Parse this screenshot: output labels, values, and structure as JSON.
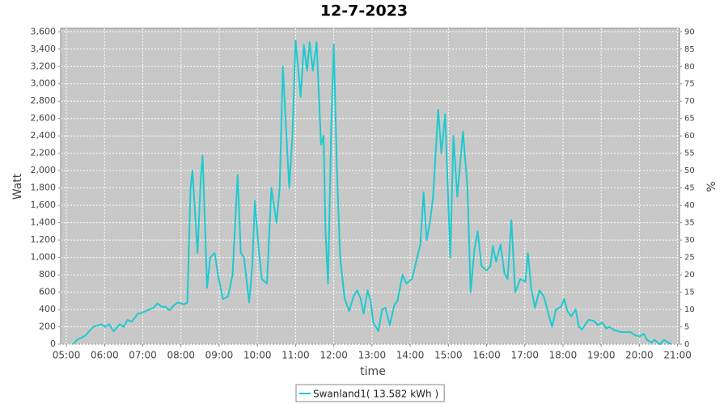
{
  "chart_data": {
    "type": "line",
    "title": "12-7-2023",
    "x_label": "time",
    "y_label": "Watt",
    "y2_label": "%",
    "xlim": [
      "04:51",
      "21:03"
    ],
    "xticks": [
      "05:00",
      "06:00",
      "07:00",
      "08:00",
      "09:00",
      "10:00",
      "11:00",
      "12:00",
      "13:00",
      "14:00",
      "15:00",
      "16:00",
      "17:00",
      "18:00",
      "19:00",
      "20:00",
      "21:00"
    ],
    "ylim": [
      0,
      3640
    ],
    "yticks": [
      0,
      200,
      400,
      600,
      800,
      {
        "value": 1000,
        "label": "1,000"
      },
      {
        "value": 1200,
        "label": "1,200"
      },
      {
        "value": 1400,
        "label": "1,400"
      },
      {
        "value": 1600,
        "label": "1,600"
      },
      {
        "value": 1800,
        "label": "1,800"
      },
      {
        "value": 2000,
        "label": "2,000"
      },
      {
        "value": 2200,
        "label": "2,200"
      },
      {
        "value": 2400,
        "label": "2,400"
      },
      {
        "value": 2600,
        "label": "2,600"
      },
      {
        "value": 2800,
        "label": "2,800"
      },
      {
        "value": 3000,
        "label": "3,000"
      },
      {
        "value": 3200,
        "label": "3,200"
      },
      {
        "value": 3400,
        "label": "3,400"
      },
      {
        "value": 3600,
        "label": "3,600"
      }
    ],
    "y2lim": [
      0,
      91
    ],
    "y2ticks": [
      0,
      5,
      10,
      15,
      20,
      25,
      30,
      35,
      40,
      45,
      50,
      55,
      60,
      65,
      70,
      75,
      80,
      85,
      90
    ],
    "grid": true,
    "background": "#c8c8c8",
    "legend": "bottom",
    "x": [
      "05:10",
      "05:17",
      "05:30",
      "05:36",
      "05:42",
      "05:55",
      "06:01",
      "06:07",
      "06:14",
      "06:24",
      "06:30",
      "06:36",
      "06:43",
      "06:52",
      "06:58",
      "07:04",
      "07:17",
      "07:23",
      "07:30",
      "07:36",
      "07:42",
      "07:49",
      "07:55",
      "08:05",
      "08:10",
      "08:15",
      "08:18",
      "08:26",
      "08:31",
      "08:34",
      "08:41",
      "08:46",
      "08:53",
      "08:58",
      "09:06",
      "09:14",
      "09:21",
      "09:29",
      "09:34",
      "09:39",
      "09:47",
      "09:52",
      "09:56",
      "10:02",
      "10:07",
      "10:15",
      "10:22",
      "10:30",
      "10:35",
      "10:40",
      "10:45",
      "10:50",
      "10:55",
      "11:00",
      "11:08",
      "11:13",
      "11:18",
      "11:22",
      "11:27",
      "11:33",
      "11:40",
      "11:44",
      "11:47",
      "11:51",
      "11:56",
      "12:00",
      "12:05",
      "12:10",
      "12:17",
      "12:24",
      "12:31",
      "12:37",
      "12:42",
      "12:47",
      "12:53",
      "12:58",
      "13:02",
      "13:10",
      "13:16",
      "13:21",
      "13:28",
      "13:35",
      "13:40",
      "13:48",
      "13:54",
      "14:03",
      "14:11",
      "14:16",
      "14:21",
      "14:26",
      "14:31",
      "14:36",
      "14:44",
      "14:49",
      "14:55",
      "15:03",
      "15:08",
      "15:14",
      "15:23",
      "15:30",
      "15:35",
      "15:41",
      "15:46",
      "15:52",
      "16:00",
      "16:06",
      "16:10",
      "16:15",
      "16:22",
      "16:28",
      "16:33",
      "16:39",
      "16:45",
      "16:53",
      "17:01",
      "17:05",
      "17:10",
      "17:16",
      "17:23",
      "17:30",
      "17:39",
      "17:43",
      "17:49",
      "17:57",
      "18:02",
      "18:07",
      "18:13",
      "18:20",
      "18:25",
      "18:30",
      "18:40",
      "18:48",
      "18:55",
      "19:02",
      "19:08",
      "19:13",
      "19:21",
      "19:31",
      "19:46",
      "19:54",
      "20:01",
      "20:07",
      "20:12",
      "20:19",
      "20:24",
      "20:32",
      "20:39",
      "20:45",
      "20:50"
    ],
    "series": [
      {
        "name": "Swanland1( 13.582 kWh )",
        "color": "#1ccbd0",
        "values": [
          0,
          50,
          100,
          150,
          200,
          230,
          200,
          230,
          150,
          230,
          200,
          280,
          260,
          350,
          360,
          380,
          420,
          470,
          430,
          430,
          390,
          450,
          480,
          460,
          480,
          1800,
          2000,
          1050,
          1900,
          2170,
          650,
          1000,
          1050,
          800,
          520,
          550,
          800,
          1950,
          1050,
          1000,
          480,
          900,
          1650,
          1100,
          750,
          700,
          1800,
          1400,
          1800,
          3200,
          2500,
          1800,
          2400,
          3500,
          2850,
          3450,
          3150,
          3480,
          3150,
          3480,
          2300,
          2400,
          1300,
          700,
          2500,
          3450,
          2000,
          1000,
          530,
          380,
          550,
          620,
          530,
          350,
          620,
          500,
          250,
          150,
          400,
          420,
          220,
          450,
          500,
          800,
          700,
          750,
          1000,
          1150,
          1750,
          1200,
          1400,
          1700,
          2700,
          2200,
          2650,
          1000,
          2400,
          1700,
          2450,
          1800,
          600,
          1100,
          1300,
          900,
          850,
          900,
          1130,
          950,
          1150,
          820,
          750,
          1430,
          600,
          750,
          720,
          1050,
          650,
          420,
          620,
          550,
          300,
          200,
          400,
          430,
          520,
          380,
          320,
          400,
          200,
          170,
          280,
          270,
          220,
          250,
          180,
          200,
          160,
          140,
          140,
          100,
          90,
          120,
          50,
          20,
          50,
          0,
          50,
          20,
          0
        ]
      }
    ]
  }
}
